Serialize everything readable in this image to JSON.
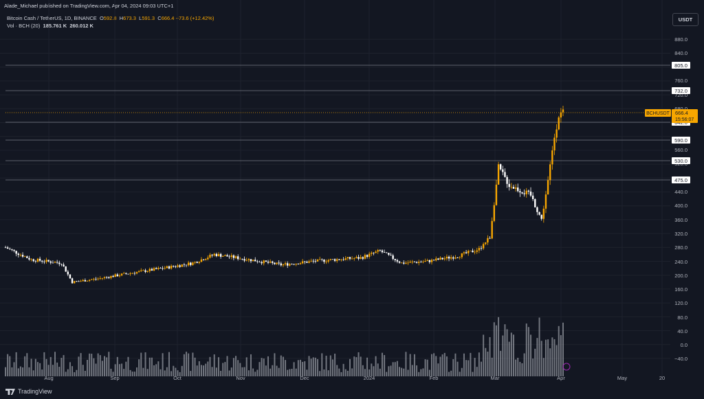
{
  "header": {
    "published": "Alade_Michael published on TradingView.com, Apr 04, 2024 09:03 UTC+1"
  },
  "legend": {
    "symbol": "Bitcoin Cash / TetherUS, 1D, BINANCE",
    "open_label": "O",
    "open": "592.8",
    "high_label": "H",
    "high": "673.3",
    "low_label": "L",
    "low": "591.3",
    "close_label": "C",
    "close": "666.4",
    "change": "+73.6 (+12.42%)",
    "volume_label": "Vol · BCH (20)",
    "volume_value": "185.761 K",
    "volume_ma": "260.012 K"
  },
  "currency_button": "USDT",
  "footer": {
    "brand": "TradingView"
  },
  "colors": {
    "up": "#f7a600",
    "down": "#ffffff",
    "background": "#131722",
    "grid": "#1e222d",
    "level_line": "#787b86",
    "price_tag": "#f7a600"
  },
  "chart_data": {
    "type": "candlestick",
    "symbol": "BCHUSDT",
    "price_label": "666.4",
    "countdown": "15:56:07",
    "price_axis_ticks": [
      "880.0",
      "840.0",
      "760.0",
      "720.0",
      "680.0",
      "560.0",
      "520.0",
      "440.0",
      "400.0",
      "360.0",
      "320.0",
      "280.0",
      "240.0",
      "200.0",
      "160.0",
      "120.0",
      "80.0",
      "40.0",
      "0.0",
      "−40.0"
    ],
    "horizontal_levels": [
      "805.0",
      "732.0",
      "642.0",
      "590.0",
      "530.0",
      "475.0"
    ],
    "x_axis_labels": [
      "Aug",
      "Sep",
      "Oct",
      "Nov",
      "Dec",
      "2024",
      "Feb",
      "Mar",
      "Apr",
      "May",
      "20"
    ],
    "ylim": [
      -40,
      920
    ],
    "price_series_approx": [
      [
        "2023-07-20",
        280
      ],
      [
        "2023-08-01",
        245
      ],
      [
        "2023-08-15",
        235
      ],
      [
        "2023-08-20",
        180
      ],
      [
        "2023-09-01",
        190
      ],
      [
        "2023-09-15",
        205
      ],
      [
        "2023-10-01",
        220
      ],
      [
        "2023-10-15",
        235
      ],
      [
        "2023-10-25",
        260
      ],
      [
        "2023-11-10",
        245
      ],
      [
        "2023-11-25",
        230
      ],
      [
        "2023-12-10",
        240
      ],
      [
        "2023-12-20",
        245
      ],
      [
        "2024-01-01",
        250
      ],
      [
        "2024-01-10",
        270
      ],
      [
        "2024-01-20",
        235
      ],
      [
        "2024-02-01",
        240
      ],
      [
        "2024-02-15",
        255
      ],
      [
        "2024-02-25",
        275
      ],
      [
        "2024-03-01",
        310
      ],
      [
        "2024-03-05",
        510
      ],
      [
        "2024-03-10",
        460
      ],
      [
        "2024-03-20",
        430
      ],
      [
        "2024-03-25",
        360
      ],
      [
        "2024-03-28",
        470
      ],
      [
        "2024-03-31",
        600
      ],
      [
        "2024-04-02",
        665
      ],
      [
        "2024-04-04",
        666.4
      ]
    ]
  }
}
